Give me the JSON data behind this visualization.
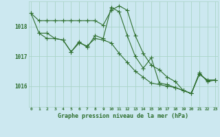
{
  "title": "Graphe pression niveau de la mer (hPa)",
  "background_color": "#cce8f0",
  "grid_color": "#aad4c8",
  "line_color": "#2d6e2d",
  "ylim": [
    1015.3,
    1018.85
  ],
  "xlim": [
    -0.3,
    23.3
  ],
  "yticks": [
    1016,
    1017,
    1018
  ],
  "xtick_labels": [
    "0",
    "1",
    "2",
    "3",
    "4",
    "5",
    "6",
    "7",
    "8",
    "9",
    "10",
    "11",
    "12",
    "13",
    "14",
    "15",
    "16",
    "17",
    "18",
    "19",
    "20",
    "21",
    "22",
    "23"
  ],
  "series1_x": [
    0,
    1,
    2,
    3,
    4,
    5,
    6,
    7,
    8,
    9,
    10,
    11,
    12,
    13,
    14,
    15,
    16,
    17,
    18,
    19,
    20,
    21,
    22,
    23
  ],
  "series1_y": [
    1018.45,
    1018.2,
    1018.2,
    1018.2,
    1018.2,
    1018.2,
    1018.2,
    1018.2,
    1018.2,
    1018.05,
    1018.55,
    1018.7,
    1018.55,
    1017.7,
    1017.1,
    1016.7,
    1016.55,
    1016.3,
    1016.15,
    1015.85,
    1015.75,
    1016.4,
    1016.2,
    1016.2
  ],
  "series2_x": [
    0,
    1,
    2,
    3,
    4,
    5,
    6,
    7,
    8,
    9,
    10,
    11,
    12,
    13,
    14,
    15,
    16,
    17,
    18,
    19,
    20,
    21,
    22,
    23
  ],
  "series2_y": [
    1018.45,
    1017.78,
    1017.78,
    1017.6,
    1017.55,
    1017.15,
    1017.45,
    1017.35,
    1017.6,
    1017.55,
    1017.45,
    1017.1,
    1016.8,
    1016.5,
    1016.3,
    1016.1,
    1016.05,
    1016.0,
    1015.95,
    1015.85,
    1015.75,
    1016.4,
    1016.2,
    1016.2
  ],
  "series3_x": [
    1,
    2,
    3,
    4,
    5,
    6,
    7,
    8,
    9,
    10,
    11,
    12,
    13,
    14,
    15,
    16,
    17,
    18,
    19,
    20,
    21,
    22,
    23
  ],
  "series3_y": [
    1017.78,
    1017.6,
    1017.6,
    1017.55,
    1017.15,
    1017.5,
    1017.3,
    1017.7,
    1017.6,
    1018.65,
    1018.5,
    1017.7,
    1017.0,
    1016.6,
    1016.95,
    1016.1,
    1016.05,
    1015.95,
    1015.85,
    1015.75,
    1016.45,
    1016.15,
    1016.2
  ]
}
